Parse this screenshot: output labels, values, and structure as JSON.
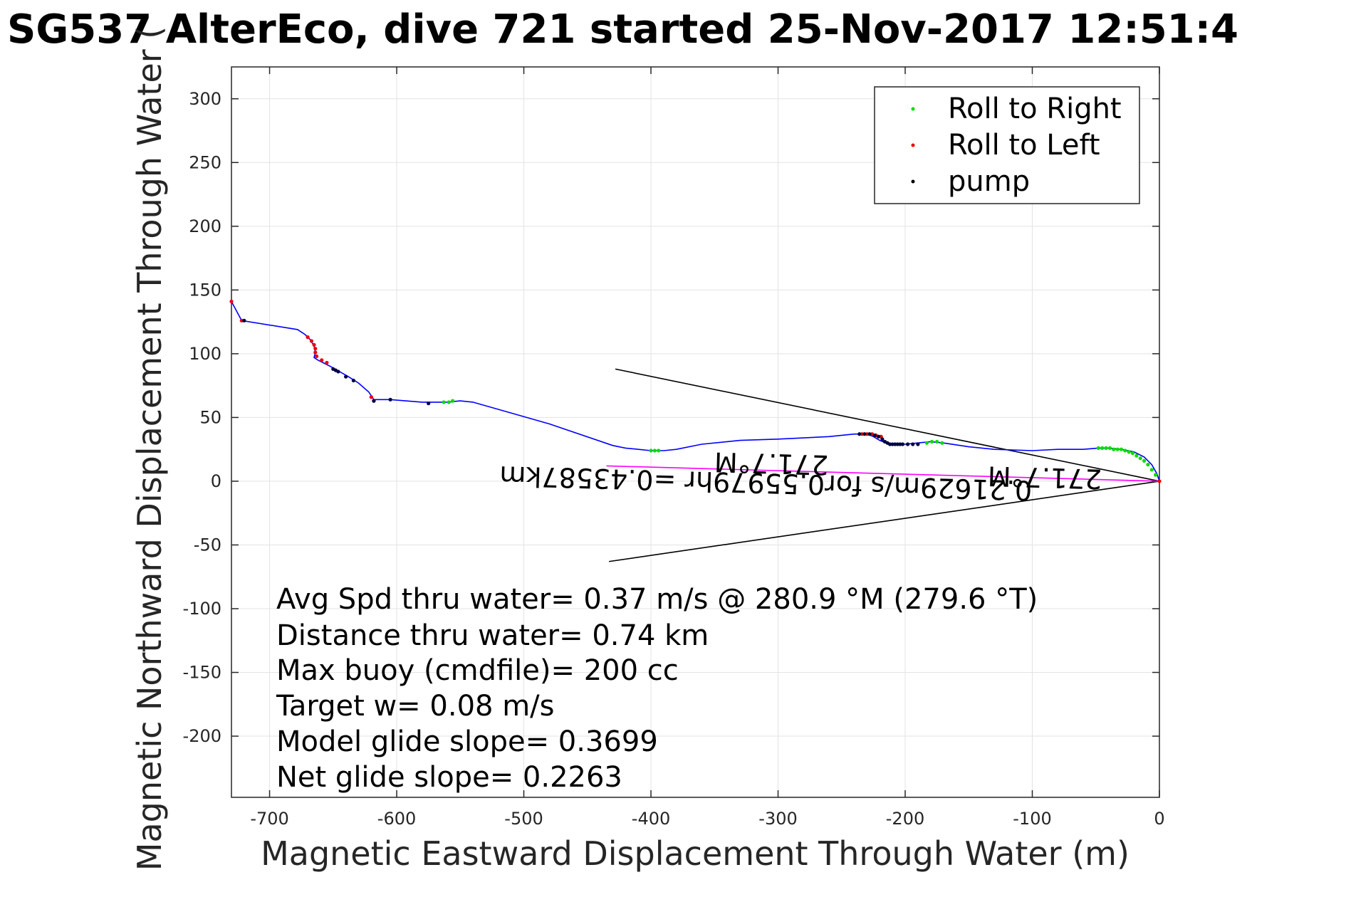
{
  "chart_data": {
    "type": "line",
    "title": "SG537 AlterEco, dive 721 started 25-Nov-2017 12:51:4",
    "xlabel": "Magnetic Eastward Displacement Through Water (m)",
    "ylabel": "Magnetic Northward Displacement Through Water (",
    "xlim": [
      -730,
      0
    ],
    "ylim": [
      -248,
      325
    ],
    "grid": true,
    "legend_position": "top-right",
    "x_ticks": [
      -700,
      -600,
      -500,
      -400,
      -300,
      -200,
      -100,
      0
    ],
    "x_tick_labels": [
      "-700",
      "-600",
      "-500",
      "-400",
      "-300",
      "-200",
      "-100",
      "0"
    ],
    "y_ticks": [
      300,
      250,
      200,
      150,
      100,
      50,
      0,
      -50,
      -100,
      -150,
      -200
    ],
    "y_tick_labels": [
      "300",
      "250",
      "200",
      "150",
      "100",
      "50",
      "0",
      "-50",
      "-100",
      "-150",
      "-200"
    ],
    "legend": [
      {
        "label": "Roll to Right",
        "color": "#00dd00"
      },
      {
        "label": "Roll to Left",
        "color": "#ee0000"
      },
      {
        "label": "pump",
        "color": "#000000"
      }
    ],
    "colors": {
      "track": "#0000ff",
      "heading_line": "#ff00ff",
      "cone": "#000000",
      "pump": "#000044"
    },
    "track": {
      "x": [
        -730,
        -722,
        -678,
        -672,
        -668,
        -665,
        -664,
        -665,
        -662,
        -658,
        -652,
        -645,
        -638,
        -630,
        -622,
        -618,
        -605,
        -580,
        -560,
        -550,
        -540,
        -480,
        -430,
        -420,
        -410,
        -400,
        -390,
        -380,
        -360,
        -330,
        -300,
        -260,
        -240,
        -230,
        -225,
        -220,
        -215,
        -212,
        -208,
        -200,
        -190,
        -180,
        -170,
        -150,
        -130,
        -100,
        -80,
        -60,
        -48,
        -40,
        -30,
        -20,
        -12,
        -6,
        -2,
        0
      ],
      "y": [
        141,
        126,
        119,
        115,
        111,
        106,
        101,
        97,
        95,
        93,
        90,
        86,
        82,
        77,
        70,
        64,
        64,
        62,
        62,
        63,
        62,
        45,
        28,
        26,
        25,
        24,
        24,
        25,
        29,
        32,
        33,
        35,
        37,
        37,
        35,
        32,
        30,
        29,
        29,
        29,
        30,
        31,
        30,
        27,
        25,
        24,
        25,
        25,
        26,
        26,
        25,
        23,
        19,
        13,
        6,
        0
      ]
    },
    "roll_right": {
      "x": [
        -563,
        -559,
        -556,
        -400,
        -397,
        -394,
        -183,
        -179,
        -175,
        -171,
        -48,
        -45,
        -42,
        -39,
        -36,
        -33,
        -30,
        -27,
        -24,
        -21,
        -18,
        -15,
        -12,
        -9,
        -6,
        -3
      ],
      "y": [
        62,
        62,
        63,
        24,
        24,
        24,
        30,
        31,
        31,
        30,
        26,
        26,
        26,
        26,
        25,
        25,
        25,
        24,
        23,
        22,
        20,
        18,
        16,
        13,
        9,
        5
      ]
    },
    "roll_left": {
      "x": [
        -730,
        -722,
        -670,
        -667,
        -665,
        -664,
        -664,
        -663,
        -659,
        -655,
        -620,
        -618,
        -234,
        -230,
        -226,
        -223,
        -219,
        0
      ],
      "y": [
        141,
        126,
        113,
        110,
        107,
        104,
        101,
        98,
        95,
        93,
        66,
        63,
        37,
        37,
        37,
        36,
        35,
        0
      ]
    },
    "pump": {
      "x": [
        -720,
        -650,
        -648,
        -646,
        -640,
        -634,
        -618,
        -605,
        -575,
        -236,
        -232,
        -228,
        -224,
        -221,
        -218,
        -216,
        -214,
        -212,
        -210,
        -208,
        -206,
        -204,
        -202,
        -198,
        -194,
        -190
      ],
      "y": [
        126,
        88,
        87,
        86,
        82,
        79,
        63,
        64,
        61,
        37,
        37,
        37,
        36,
        35,
        33,
        31,
        30,
        29,
        29,
        29,
        29,
        29,
        29,
        29,
        29,
        29
      ]
    },
    "heading_line": {
      "x": [
        -435,
        0
      ],
      "y": [
        12,
        0
      ]
    },
    "cone_lines": [
      {
        "x": [
          -428,
          0
        ],
        "y": [
          88,
          0
        ]
      },
      {
        "x": [
          -433,
          0
        ],
        "y": [
          -63,
          0
        ]
      }
    ],
    "flipped_labels": [
      {
        "text": "0.21629m/s for0.55979hr =0.43587km",
        "x": -100,
        "y": 0
      },
      {
        "text": "271.7°M",
        "x": -260,
        "y": 20
      },
      {
        "text": "271.7°M",
        "x": -45,
        "y": 9
      }
    ],
    "annotations": [
      "Avg Spd thru water=  0.37 m/s @ 280.9 °M (279.6 °T)",
      "Distance thru water=  0.74 km",
      "Max buoy (cmdfile)= 200 cc",
      "Target w= 0.08 m/s",
      "Model glide slope= 0.3699",
      "Net glide slope= 0.2263"
    ]
  }
}
